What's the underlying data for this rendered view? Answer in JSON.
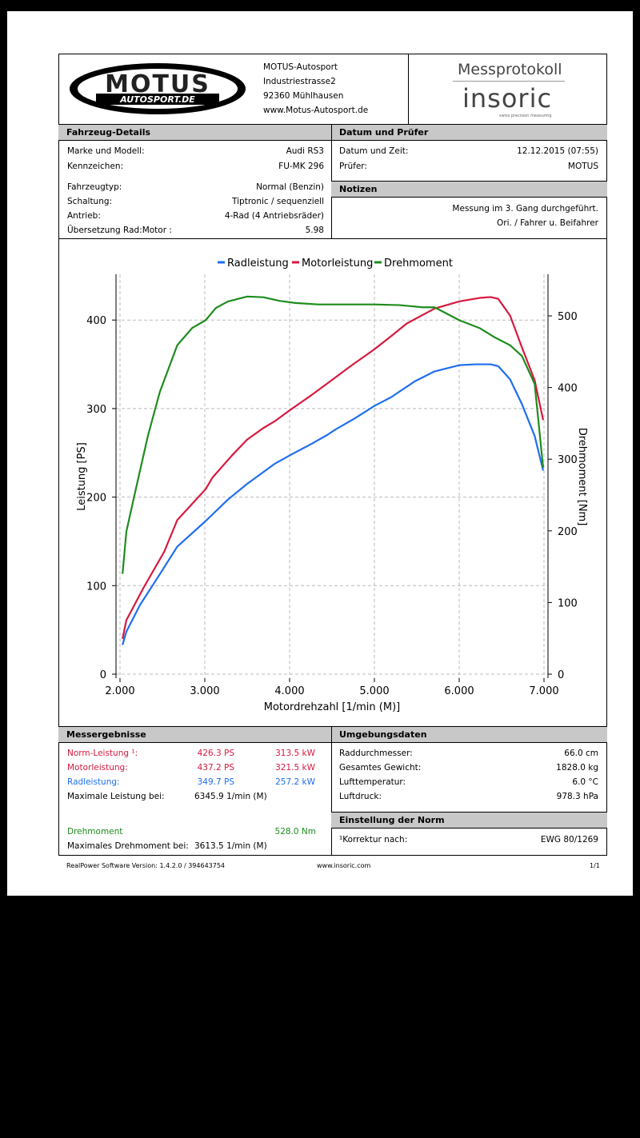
{
  "company": {
    "logo_text": "MOTUS",
    "logo_subtext": "AUTOSPORT.DE",
    "name": "MOTUS-Autosport",
    "street": "Industriestrasse2",
    "city": "92360 Mühlhausen",
    "web": "www.Motus-Autosport.de"
  },
  "protocol": {
    "title": "Messprotokoll",
    "brand": "insoric",
    "tagline": "swiss precision measuring"
  },
  "vehicle": {
    "title": "Fahrzeug-Details",
    "rows": [
      {
        "label": "Marke und Modell:",
        "value": "Audi RS3"
      },
      {
        "label": "Kennzeichen:",
        "value": "FU-MK 296"
      },
      {
        "label": "Fahrzeugtyp:",
        "value": "Normal (Benzin)"
      },
      {
        "label": "Schaltung:",
        "value": "Tiptronic / sequenziell"
      },
      {
        "label": "Antrieb:",
        "value": "4-Rad (4 Antriebsräder)"
      },
      {
        "label": "Übersetzung Rad:Motor :",
        "value": "5.98"
      }
    ]
  },
  "date": {
    "title": "Datum und Prüfer",
    "rows": [
      {
        "label": "Datum und Zeit:",
        "value": "12.12.2015 (07:55)"
      },
      {
        "label": "Prüfer:",
        "value": "MOTUS"
      }
    ]
  },
  "notes": {
    "title": "Notizen",
    "lines": [
      "Messung im 3. Gang durchgeführt.",
      "Ori. / Fahrer u. Beifahrer"
    ]
  },
  "chart_data": {
    "type": "line",
    "xlabel": "Motordrehzahl [1/min (M)]",
    "ylabel": "Leistung [PS]",
    "y2label": "Drehmoment [Nm]",
    "xlim": [
      1950,
      7050
    ],
    "ylim": [
      0,
      451
    ],
    "y2lim": [
      0,
      558
    ],
    "xticks": [
      2000,
      3000,
      4000,
      5000,
      6000,
      7000
    ],
    "xtick_labels": [
      "2.000",
      "3.000",
      "4.000",
      "5.000",
      "6.000",
      "7.000"
    ],
    "yticks": [
      0,
      100,
      200,
      300,
      400
    ],
    "y2ticks": [
      0,
      100,
      200,
      300,
      400,
      500
    ],
    "grid": true,
    "legend": "top",
    "series": [
      {
        "name": "Radleistung",
        "axis": "left",
        "color": "#1e6ef0",
        "x": [
          2030,
          2075,
          2235,
          2470,
          2675,
          3010,
          3270,
          3500,
          3830,
          4000,
          4255,
          4440,
          4535,
          4770,
          5000,
          5200,
          5480,
          5710,
          6000,
          6190,
          6370,
          6460,
          6600,
          6740,
          6890,
          6990
        ],
        "y": [
          33,
          48,
          78,
          113,
          144,
          173,
          197,
          215,
          238,
          247,
          260,
          270,
          276,
          289,
          303,
          313,
          331,
          342,
          349,
          350,
          350,
          348,
          333,
          305,
          269,
          230
        ]
      },
      {
        "name": "Motorleistung",
        "axis": "left",
        "color": "#d7193f",
        "x": [
          2030,
          2075,
          2280,
          2520,
          2675,
          3010,
          3090,
          3320,
          3500,
          3690,
          3830,
          4000,
          4255,
          4440,
          4720,
          5000,
          5200,
          5380,
          5710,
          6000,
          6240,
          6370,
          6460,
          6600,
          6740,
          6890,
          6990
        ],
        "y": [
          40,
          61,
          98,
          138,
          174,
          209,
          222,
          247,
          265,
          278,
          286,
          298,
          315,
          328,
          348,
          367,
          382,
          396,
          413,
          421,
          425,
          426,
          424,
          405,
          369,
          332,
          287
        ]
      },
      {
        "name": "Drehmoment",
        "axis": "right",
        "color": "#1e8c1e",
        "x": [
          2030,
          2075,
          2190,
          2330,
          2470,
          2675,
          2850,
          3010,
          3130,
          3270,
          3500,
          3690,
          3880,
          4070,
          4340,
          4720,
          5000,
          5300,
          5570,
          5710,
          6000,
          6240,
          6420,
          6600,
          6740,
          6890,
          6990
        ],
        "y": [
          140,
          199,
          260,
          333,
          394,
          459,
          483,
          494,
          511,
          520,
          527,
          526,
          521,
          518,
          516,
          516,
          516,
          515,
          512,
          512,
          494,
          483,
          470,
          459,
          444,
          405,
          288
        ]
      }
    ]
  },
  "results": {
    "title": "Messergebnisse",
    "rows": [
      {
        "label": "Norm-Leistung ¹:",
        "ps": "426.3 PS",
        "kw": "313.5 kW",
        "cls": "red"
      },
      {
        "label": "Motorleistung:",
        "ps": "437.2 PS",
        "kw": "321.5 kW",
        "cls": "red"
      },
      {
        "label": "Radleistung:",
        "ps": "349.7 PS",
        "kw": "257.2 kW",
        "cls": "blue"
      }
    ],
    "max_power_label": "Maximale Leistung bei:",
    "max_power_value": "6345.9 1/min (M)",
    "torque_label": "Drehmoment",
    "torque_value": "528.0 Nm",
    "max_torque_label": "Maximales Drehmoment bei:",
    "max_torque_value": "3613.5 1/min (M)"
  },
  "environment": {
    "title": "Umgebungsdaten",
    "rows": [
      {
        "label": "Raddurchmesser:",
        "value": "66.0 cm"
      },
      {
        "label": "Gesamtes Gewicht:",
        "value": "1828.0 kg"
      },
      {
        "label": "Lufttemperatur:",
        "value": "6.0 °C"
      },
      {
        "label": "Luftdruck:",
        "value": "978.3 hPa"
      }
    ]
  },
  "norm": {
    "title": "Einstellung der Norm",
    "label": "¹Korrektur nach:",
    "value": "EWG 80/1269"
  },
  "footer": {
    "software": "RealPower Software Version: 1.4.2.0 / 394643754",
    "web": "www.insoric.com",
    "page": "1/1"
  }
}
